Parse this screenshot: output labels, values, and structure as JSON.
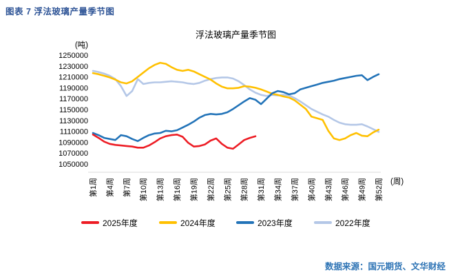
{
  "header": {
    "title": "图表 7  浮法玻璃产量季节图"
  },
  "chart_data": {
    "type": "line",
    "title": "浮法玻璃产量季节图",
    "ylabel": "(吨)",
    "xlabel": "(周)",
    "ylim": [
      1050000,
      1250000
    ],
    "y_tick_step": 20000,
    "grid": false,
    "legend_position": "bottom",
    "x_tick_labels": [
      "第1周",
      "第4周",
      "第7周",
      "第10周",
      "第13周",
      "第16周",
      "第19周",
      "第22周",
      "第25周",
      "第28周",
      "第31周",
      "第34周",
      "第37周",
      "第40周",
      "第43周",
      "第46周",
      "第49周",
      "第52周"
    ],
    "x_range_weeks": [
      1,
      52
    ],
    "series": [
      {
        "name": "2025年度",
        "color": "#ed1c24",
        "start_week": 1,
        "values": [
          1104000,
          1098000,
          1091000,
          1087000,
          1085000,
          1084000,
          1083000,
          1082000,
          1080000,
          1080000,
          1084000,
          1090000,
          1097000,
          1101000,
          1103000,
          1104000,
          1100000,
          1089000,
          1082000,
          1083000,
          1086000,
          1093000,
          1097000,
          1087000,
          1080000,
          1078000,
          1086000,
          1094000,
          1098000,
          1101000
        ]
      },
      {
        "name": "2024年度",
        "color": "#ffc000",
        "start_week": 1,
        "values": [
          1217000,
          1215000,
          1212000,
          1209000,
          1205000,
          1200000,
          1198000,
          1202000,
          1210000,
          1218000,
          1226000,
          1232000,
          1236000,
          1234000,
          1228000,
          1223000,
          1221000,
          1223000,
          1220000,
          1215000,
          1210000,
          1205000,
          1198000,
          1192000,
          1189000,
          1189000,
          1190000,
          1193000,
          1192000,
          1190000,
          1187000,
          1183000,
          1179000,
          1177000,
          1174000,
          1172000,
          1167000,
          1159000,
          1151000,
          1137000,
          1134000,
          1131000,
          1111000,
          1097000,
          1094000,
          1097000,
          1103000,
          1107000,
          1102000,
          1101000,
          1108000,
          1113000
        ]
      },
      {
        "name": "2023年度",
        "color": "#2273b8",
        "start_week": 1,
        "values": [
          1107000,
          1103000,
          1098000,
          1096000,
          1094000,
          1103000,
          1101000,
          1096000,
          1092000,
          1098000,
          1103000,
          1106000,
          1107000,
          1111000,
          1110000,
          1112000,
          1117000,
          1122000,
          1128000,
          1135000,
          1140000,
          1142000,
          1141000,
          1142000,
          1145000,
          1151000,
          1158000,
          1165000,
          1171000,
          1168000,
          1160000,
          1170000,
          1180000,
          1184000,
          1182000,
          1178000,
          1180000,
          1187000,
          1190000,
          1193000,
          1196000,
          1199000,
          1201000,
          1203000,
          1206000,
          1208000,
          1210000,
          1212000,
          1213000,
          1204000,
          1210000,
          1215000
        ]
      },
      {
        "name": "2022年度",
        "color": "#b4c7e7",
        "start_week": 1,
        "values": [
          1221000,
          1219000,
          1216000,
          1212000,
          1206000,
          1193000,
          1175000,
          1184000,
          1206000,
          1197000,
          1199000,
          1200000,
          1200000,
          1201000,
          1202000,
          1201000,
          1200000,
          1198000,
          1197000,
          1199000,
          1203000,
          1206000,
          1208000,
          1209000,
          1209000,
          1207000,
          1202000,
          1195000,
          1187000,
          1181000,
          1177000,
          1175000,
          1177000,
          1176000,
          1177000,
          1176000,
          1171000,
          1165000,
          1158000,
          1151000,
          1146000,
          1141000,
          1137000,
          1131000,
          1126000,
          1123000,
          1122000,
          1122000,
          1123000,
          1119000,
          1114000,
          1109000
        ]
      }
    ]
  },
  "source": {
    "text": "数据来源：国元期货、文华财经"
  }
}
